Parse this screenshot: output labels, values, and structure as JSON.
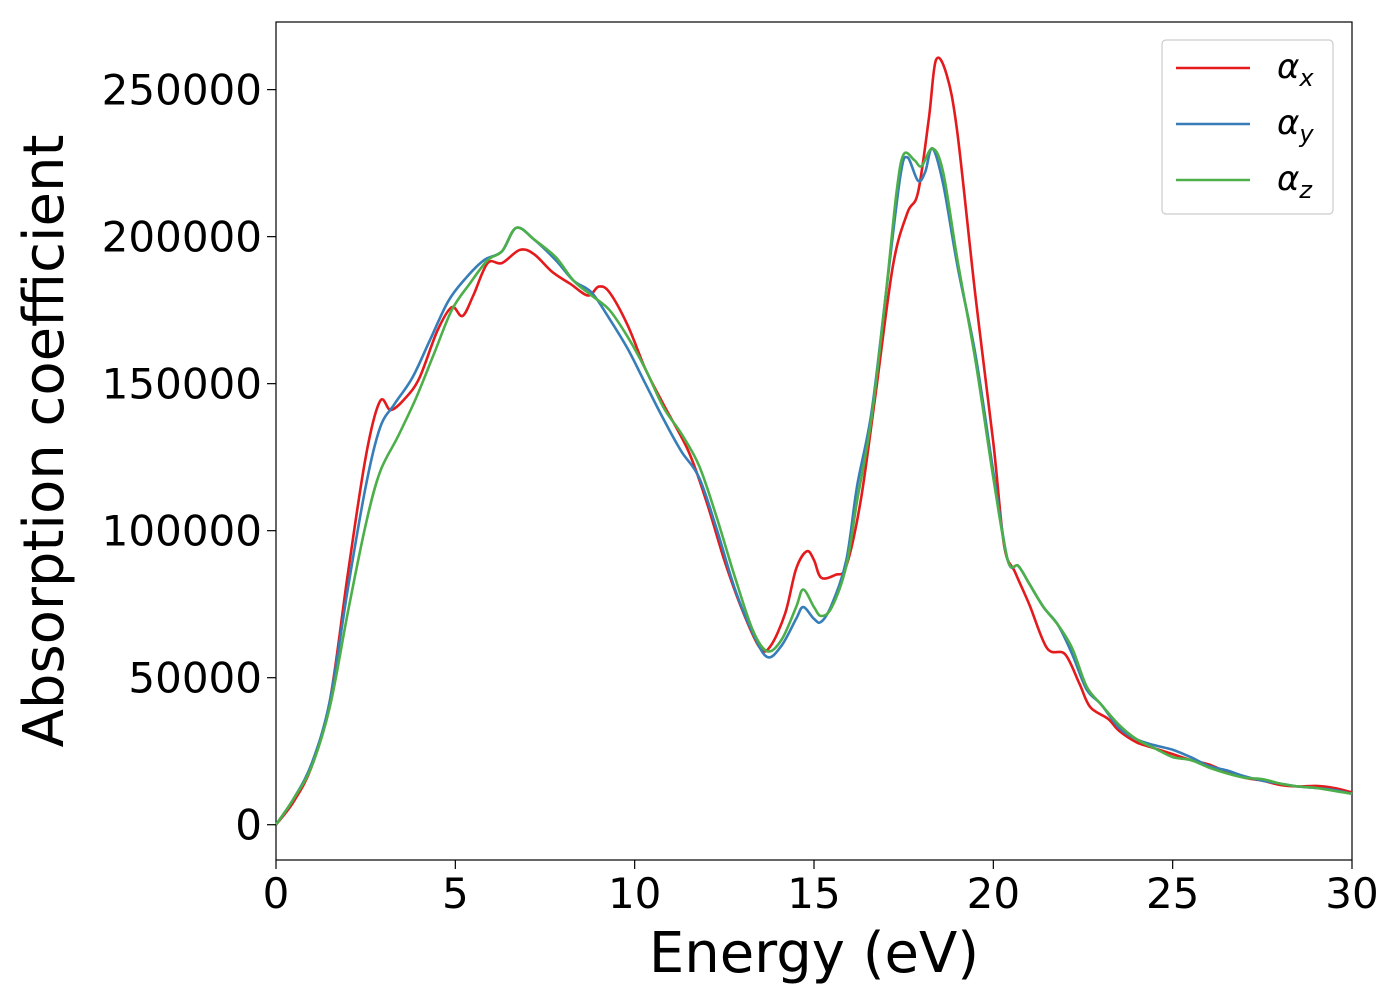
{
  "chart_data": {
    "type": "line",
    "xlabel": "Energy (eV)",
    "ylabel": "Absorption coefficient",
    "xlim": [
      0,
      30
    ],
    "ylim": [
      -12000,
      273000
    ],
    "xticks": [
      0,
      5,
      10,
      15,
      20,
      25,
      30
    ],
    "xtick_labels": [
      "0",
      "5",
      "10",
      "15",
      "20",
      "25",
      "30"
    ],
    "yticks": [
      0,
      50000,
      100000,
      150000,
      200000,
      250000
    ],
    "ytick_labels": [
      "0",
      "50000",
      "100000",
      "150000",
      "200000",
      "250000"
    ],
    "grid": false,
    "legend_position": "top-right",
    "series": [
      {
        "name": "α",
        "subscript": "x",
        "color": "#e41a1c",
        "points": [
          [
            0,
            0
          ],
          [
            0.5,
            8000
          ],
          [
            1,
            20000
          ],
          [
            1.5,
            42000
          ],
          [
            2,
            85000
          ],
          [
            2.5,
            125000
          ],
          [
            2.9,
            144000
          ],
          [
            3.2,
            141000
          ],
          [
            3.6,
            145000
          ],
          [
            4,
            152000
          ],
          [
            4.5,
            168000
          ],
          [
            4.9,
            176000
          ],
          [
            5.2,
            173000
          ],
          [
            5.5,
            180000
          ],
          [
            5.9,
            191000
          ],
          [
            6.3,
            191000
          ],
          [
            6.8,
            195500
          ],
          [
            7.2,
            194000
          ],
          [
            7.7,
            188000
          ],
          [
            8.2,
            184000
          ],
          [
            8.7,
            180000
          ],
          [
            9,
            183000
          ],
          [
            9.3,
            181000
          ],
          [
            9.8,
            170000
          ],
          [
            10.3,
            155000
          ],
          [
            10.8,
            143000
          ],
          [
            11.5,
            127000
          ],
          [
            12,
            110000
          ],
          [
            12.5,
            90000
          ],
          [
            13,
            73000
          ],
          [
            13.5,
            60000
          ],
          [
            13.8,
            61000
          ],
          [
            14.2,
            72000
          ],
          [
            14.5,
            87000
          ],
          [
            14.8,
            93000
          ],
          [
            15,
            90000
          ],
          [
            15.2,
            84000
          ],
          [
            15.6,
            85000
          ],
          [
            15.9,
            88000
          ],
          [
            16.3,
            110000
          ],
          [
            16.7,
            145000
          ],
          [
            17.2,
            190000
          ],
          [
            17.6,
            208000
          ],
          [
            17.9,
            215000
          ],
          [
            18.2,
            240000
          ],
          [
            18.4,
            260000
          ],
          [
            18.7,
            255000
          ],
          [
            19,
            235000
          ],
          [
            19.5,
            180000
          ],
          [
            20,
            130000
          ],
          [
            20.3,
            95000
          ],
          [
            20.6,
            86000
          ],
          [
            21,
            75000
          ],
          [
            21.5,
            60000
          ],
          [
            22,
            58000
          ],
          [
            22.4,
            48000
          ],
          [
            22.7,
            40000
          ],
          [
            23.2,
            36000
          ],
          [
            23.5,
            32000
          ],
          [
            24,
            28000
          ],
          [
            24.5,
            26000
          ],
          [
            25,
            24000
          ],
          [
            25.5,
            22000
          ],
          [
            26,
            20500
          ],
          [
            26.5,
            18000
          ],
          [
            27,
            16000
          ],
          [
            27.5,
            15000
          ],
          [
            28,
            13500
          ],
          [
            28.5,
            13000
          ],
          [
            29,
            13200
          ],
          [
            29.5,
            12500
          ],
          [
            30,
            11000
          ]
        ]
      },
      {
        "name": "α",
        "subscript": "y",
        "color": "#377eb8",
        "points": [
          [
            0,
            0
          ],
          [
            0.5,
            9000
          ],
          [
            1,
            21000
          ],
          [
            1.5,
            42000
          ],
          [
            2,
            80000
          ],
          [
            2.5,
            115000
          ],
          [
            2.9,
            135000
          ],
          [
            3.3,
            143000
          ],
          [
            3.8,
            152000
          ],
          [
            4.3,
            165000
          ],
          [
            4.8,
            178000
          ],
          [
            5.3,
            186000
          ],
          [
            5.8,
            192000
          ],
          [
            6.3,
            195000
          ],
          [
            6.7,
            203000
          ],
          [
            7.2,
            199000
          ],
          [
            7.8,
            192000
          ],
          [
            8.3,
            185000
          ],
          [
            8.8,
            181000
          ],
          [
            9.3,
            172000
          ],
          [
            9.8,
            162000
          ],
          [
            10.3,
            150000
          ],
          [
            10.8,
            138000
          ],
          [
            11.3,
            127000
          ],
          [
            11.8,
            118000
          ],
          [
            12.3,
            100000
          ],
          [
            12.8,
            80000
          ],
          [
            13.3,
            65000
          ],
          [
            13.7,
            57000
          ],
          [
            14.1,
            61000
          ],
          [
            14.5,
            70000
          ],
          [
            14.7,
            74000
          ],
          [
            15,
            70000
          ],
          [
            15.2,
            69000
          ],
          [
            15.5,
            75000
          ],
          [
            15.9,
            90000
          ],
          [
            16.2,
            115000
          ],
          [
            16.6,
            140000
          ],
          [
            17,
            180000
          ],
          [
            17.4,
            220000
          ],
          [
            17.6,
            227000
          ],
          [
            17.9,
            219000
          ],
          [
            18.1,
            222000
          ],
          [
            18.3,
            230000
          ],
          [
            18.6,
            218000
          ],
          [
            19,
            190000
          ],
          [
            19.5,
            160000
          ],
          [
            20,
            120000
          ],
          [
            20.4,
            90000
          ],
          [
            20.7,
            88000
          ],
          [
            21,
            82000
          ],
          [
            21.4,
            74000
          ],
          [
            21.8,
            68000
          ],
          [
            22.2,
            58000
          ],
          [
            22.6,
            46000
          ],
          [
            23,
            41000
          ],
          [
            23.5,
            33000
          ],
          [
            24,
            29000
          ],
          [
            24.5,
            27000
          ],
          [
            25,
            25500
          ],
          [
            25.5,
            23000
          ],
          [
            26,
            20000
          ],
          [
            26.5,
            18500
          ],
          [
            27,
            16500
          ],
          [
            27.5,
            15000
          ],
          [
            28,
            14000
          ],
          [
            28.5,
            13000
          ],
          [
            29,
            12500
          ],
          [
            29.5,
            11800
          ],
          [
            30,
            10500
          ]
        ]
      },
      {
        "name": "α",
        "subscript": "z",
        "color": "#4daf4a",
        "points": [
          [
            0,
            0
          ],
          [
            0.5,
            9000
          ],
          [
            1,
            20000
          ],
          [
            1.5,
            40000
          ],
          [
            2,
            72000
          ],
          [
            2.5,
            102000
          ],
          [
            2.9,
            120000
          ],
          [
            3.4,
            132000
          ],
          [
            3.9,
            145000
          ],
          [
            4.4,
            160000
          ],
          [
            4.9,
            175000
          ],
          [
            5.4,
            184000
          ],
          [
            5.9,
            192000
          ],
          [
            6.3,
            195000
          ],
          [
            6.7,
            203000
          ],
          [
            7.2,
            199000
          ],
          [
            7.8,
            193000
          ],
          [
            8.3,
            185000
          ],
          [
            8.8,
            180000
          ],
          [
            9.3,
            175000
          ],
          [
            9.8,
            166000
          ],
          [
            10.3,
            155000
          ],
          [
            10.8,
            142000
          ],
          [
            11.3,
            133000
          ],
          [
            11.8,
            122000
          ],
          [
            12.3,
            104000
          ],
          [
            12.8,
            84000
          ],
          [
            13.3,
            66000
          ],
          [
            13.7,
            59000
          ],
          [
            14.1,
            63000
          ],
          [
            14.5,
            74000
          ],
          [
            14.7,
            80000
          ],
          [
            15,
            74000
          ],
          [
            15.2,
            71000
          ],
          [
            15.5,
            74000
          ],
          [
            15.9,
            88000
          ],
          [
            16.2,
            110000
          ],
          [
            16.6,
            138000
          ],
          [
            17,
            180000
          ],
          [
            17.3,
            215000
          ],
          [
            17.5,
            228000
          ],
          [
            17.8,
            226000
          ],
          [
            18,
            224000
          ],
          [
            18.3,
            230000
          ],
          [
            18.6,
            222000
          ],
          [
            19,
            192000
          ],
          [
            19.5,
            158000
          ],
          [
            20,
            118000
          ],
          [
            20.4,
            90000
          ],
          [
            20.7,
            88000
          ],
          [
            21,
            82000
          ],
          [
            21.4,
            74000
          ],
          [
            21.8,
            68000
          ],
          [
            22.2,
            60000
          ],
          [
            22.6,
            47000
          ],
          [
            23,
            41000
          ],
          [
            23.5,
            34000
          ],
          [
            24,
            29000
          ],
          [
            24.5,
            26000
          ],
          [
            25,
            23000
          ],
          [
            25.5,
            22000
          ],
          [
            26,
            19500
          ],
          [
            26.5,
            17500
          ],
          [
            27,
            16000
          ],
          [
            27.5,
            15500
          ],
          [
            28,
            14000
          ],
          [
            28.5,
            13000
          ],
          [
            29,
            12500
          ],
          [
            29.5,
            11500
          ],
          [
            30,
            10500
          ]
        ]
      }
    ]
  }
}
